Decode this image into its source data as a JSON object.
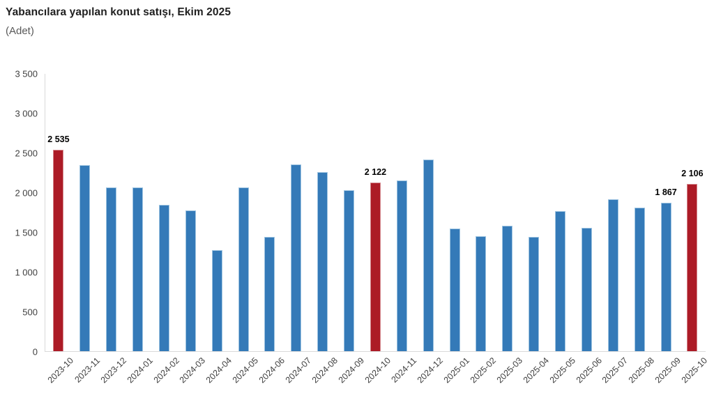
{
  "header": {
    "title": "Yabancılara yapılan konut satışı, Ekim 2025",
    "subtitle": "(Adet)"
  },
  "chart_data": {
    "type": "bar",
    "title": "Yabancılara yapılan konut satışı, Ekim 2025",
    "unit_label": "(Adet)",
    "categories": [
      "2023-10",
      "2023-11",
      "2023-12",
      "2024-01",
      "2024-02",
      "2024-03",
      "2024-04",
      "2024-05",
      "2024-06",
      "2024-07",
      "2024-08",
      "2024-09",
      "2024-10",
      "2024-11",
      "2024-12",
      "2025-01",
      "2025-02",
      "2025-03",
      "2025-04",
      "2025-05",
      "2025-06",
      "2025-07",
      "2025-08",
      "2025-09",
      "2025-10"
    ],
    "values": [
      2535,
      2341,
      2064,
      2059,
      1840,
      1772,
      1270,
      2065,
      1437,
      2349,
      2250,
      2022,
      2122,
      2147,
      2413,
      1546,
      1449,
      1577,
      1436,
      1766,
      1556,
      1912,
      1809,
      1867,
      2106
    ],
    "highlighted_categories": [
      "2023-10",
      "2024-10",
      "2025-10"
    ],
    "data_labels": {
      "2023-10": "2 535",
      "2024-10": "2 122",
      "2025-09": "1 867",
      "2025-10": "2 106"
    },
    "ylim": [
      0,
      3500
    ],
    "ytick_interval": 500,
    "yticks": [
      "3 500",
      "3 000",
      "2 500",
      "2 000",
      "1 500",
      "1 000",
      "500",
      "0"
    ],
    "grid": false,
    "legend": "none",
    "colors": {
      "bar": "#347ab8",
      "bar_edge": "#9ec4e1",
      "highlight": "#ac1b26",
      "highlight_edge": "#d4868c",
      "axis_line": "#d9d9d9",
      "tick_text": "#404040",
      "data_label_text": "#000000"
    }
  }
}
